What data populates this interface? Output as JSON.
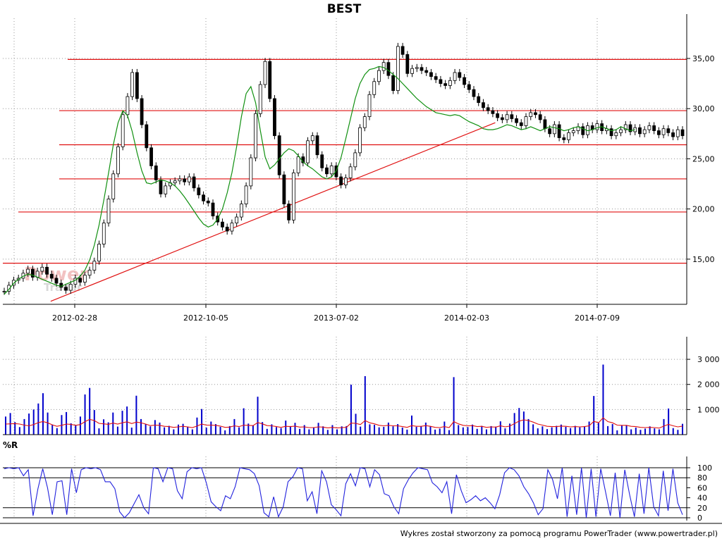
{
  "chart_data": [
    {
      "type": "candlestick",
      "title": "BEST",
      "x_ticks": [
        "2012-02-28",
        "2012-10-05",
        "2013-07-02",
        "2014-02-03",
        "2014-07-09"
      ],
      "y_ticks": [
        "15,00",
        "20,00",
        "25,00",
        "30,00",
        "35,00"
      ],
      "ylim": [
        10.5,
        39
      ],
      "grid": true,
      "series": [
        {
          "name": "",
          "close": [
            11.8,
            12.4,
            12.9,
            13.1,
            13.6,
            14.0,
            13.2,
            13.8,
            14.2,
            13.5,
            13.1,
            12.6,
            12.2,
            11.9,
            12.5,
            13.1,
            12.7,
            13.4,
            13.9,
            14.8,
            16.5,
            18.6,
            21.0,
            23.5,
            26.2,
            29.4,
            31.2,
            33.6,
            31.0,
            28.4,
            26.1,
            24.3,
            22.9,
            21.5,
            22.3,
            22.6,
            22.8,
            23.0,
            22.7,
            23.2,
            22.1,
            21.4,
            20.8,
            20.6,
            19.3,
            18.7,
            18.2,
            17.8,
            18.6,
            19.2,
            20.5,
            22.3,
            25.1,
            29.5,
            32.4,
            34.7,
            31.0,
            27.3,
            23.4,
            20.5,
            18.9,
            23.6,
            25.2,
            24.6,
            26.8,
            27.3,
            25.4,
            24.1,
            23.5,
            24.3,
            23.2,
            22.4,
            23.1,
            24.2,
            25.6,
            28.1,
            29.2,
            31.4,
            32.7,
            33.8,
            34.6,
            33.3,
            31.8,
            36.2,
            35.4,
            33.5,
            34.0,
            34.1,
            33.8,
            33.6,
            33.2,
            32.9,
            32.5,
            32.3,
            32.8,
            33.6,
            33.1,
            32.4,
            31.9,
            31.2,
            30.6,
            30.1,
            29.8,
            29.5,
            29.1,
            28.9,
            29.4,
            29.0,
            28.6,
            28.3,
            29.2,
            29.6,
            29.4,
            28.9,
            28.0,
            27.5,
            28.4,
            27.1,
            26.9,
            27.6,
            27.8,
            28.2,
            27.4,
            28.3,
            27.9,
            28.5,
            27.8,
            28.0,
            27.3,
            27.6,
            27.9,
            28.4,
            27.7,
            28.1,
            27.5,
            27.9,
            28.3,
            27.8,
            27.4,
            28.0,
            27.6,
            27.2,
            27.9,
            27.3
          ],
          "moving_average": [
            11.5,
            12.0,
            12.6,
            13.0,
            13.3,
            13.5,
            13.4,
            13.2,
            13.0,
            12.8,
            12.6,
            12.4,
            12.3,
            12.5,
            12.7,
            12.9,
            13.3,
            13.9,
            14.9,
            16.4,
            18.4,
            20.9,
            23.6,
            26.4,
            28.6,
            29.8,
            29.3,
            27.7,
            25.6,
            23.8,
            22.6,
            22.5,
            22.7,
            22.9,
            22.8,
            22.6,
            22.3,
            21.8,
            21.2,
            20.5,
            19.8,
            19.1,
            18.5,
            18.2,
            18.4,
            19.0,
            20.0,
            21.6,
            23.6,
            26.2,
            29.2,
            31.5,
            32.2,
            30.6,
            27.8,
            25.2,
            24.0,
            24.4,
            25.0,
            25.6,
            26.0,
            25.8,
            25.3,
            24.7,
            24.3,
            24.0,
            23.6,
            23.2,
            23.0,
            23.2,
            23.8,
            25.1,
            27.0,
            29.0,
            31.0,
            32.5,
            33.4,
            33.9,
            34.0,
            34.2,
            34.1,
            33.8,
            33.4,
            33.0,
            32.5,
            32.0,
            31.5,
            31.0,
            30.6,
            30.2,
            29.9,
            29.6,
            29.5,
            29.4,
            29.3,
            29.4,
            29.3,
            29.0,
            28.7,
            28.5,
            28.3,
            28.0,
            27.9,
            27.9,
            28.0,
            28.2,
            28.4,
            28.3,
            28.1,
            27.9,
            28.0,
            28.2,
            28.0,
            27.8,
            28.0,
            28.2,
            28.1,
            28.0,
            27.8,
            27.9,
            28.1,
            28.2,
            28.0,
            27.8,
            27.9,
            28.1,
            28.2,
            28.0,
            27.8,
            27.9,
            28.2,
            28.0,
            27.8,
            27.9
          ]
        }
      ],
      "support_lines": [
        34.9,
        29.8,
        26.4,
        23.0,
        19.7,
        14.6
      ],
      "trendline": {
        "from": [
          0.07,
          10.8
        ],
        "to": [
          0.72,
          28.6
        ]
      }
    },
    {
      "type": "bar",
      "y_ticks": [
        "1 000",
        "2 000",
        "3 000"
      ],
      "ylim": [
        0,
        3900
      ],
      "series": [
        {
          "name": "",
          "values": [
            720,
            860,
            500,
            300,
            620,
            840,
            1000,
            1240,
            1650,
            880,
            400,
            260,
            780,
            900,
            450,
            380,
            720,
            1600,
            1860,
            980,
            250,
            610,
            490,
            880,
            320,
            950,
            1120,
            280,
            1550,
            620,
            420,
            330,
            580,
            480,
            290,
            350,
            210,
            400,
            430,
            320,
            210,
            680,
            1020,
            280,
            520,
            420,
            310,
            170,
            340,
            620,
            290,
            1050,
            440,
            370,
            1510,
            500,
            230,
            410,
            300,
            260,
            560,
            340,
            470,
            230,
            380,
            210,
            290,
            470,
            330,
            190,
            380,
            210,
            330,
            340,
            1990,
            830,
            320,
            2330,
            410,
            390,
            290,
            310,
            480,
            330,
            420,
            280,
            200,
            760,
            310,
            330,
            480,
            330,
            200,
            240,
            520,
            180,
            2290,
            380,
            290,
            300,
            400,
            230,
            350,
            210,
            340,
            320,
            530,
            250,
            440,
            860,
            1060,
            920,
            620,
            410,
            250,
            330,
            220,
            290,
            350,
            400,
            310,
            260,
            350,
            290,
            330,
            520,
            1540,
            480,
            2790,
            340,
            420,
            170,
            360,
            380,
            210,
            280,
            190,
            240,
            330,
            250,
            210,
            620,
            1040,
            260,
            190,
            430
          ],
          "moving_average": [
            420,
            430,
            440,
            420,
            380,
            350,
            400,
            480,
            520,
            470,
            390,
            330,
            370,
            420,
            410,
            370,
            400,
            520,
            610,
            560,
            450,
            430,
            410,
            460,
            420,
            470,
            510,
            440,
            500,
            470,
            420,
            360,
            380,
            370,
            330,
            320,
            290,
            310,
            330,
            310,
            280,
            340,
            420,
            380,
            380,
            370,
            340,
            290,
            300,
            350,
            320,
            380,
            370,
            360,
            480,
            430,
            360,
            350,
            320,
            290,
            330,
            320,
            340,
            300,
            310,
            280,
            280,
            310,
            300,
            270,
            290,
            270,
            280,
            290,
            460,
            450,
            400,
            560,
            470,
            430,
            370,
            350,
            370,
            350,
            350,
            320,
            290,
            360,
            330,
            330,
            360,
            330,
            290,
            280,
            320,
            280,
            520,
            430,
            370,
            350,
            360,
            320,
            330,
            290,
            310,
            300,
            350,
            310,
            340,
            440,
            540,
            590,
            560,
            500,
            420,
            380,
            330,
            320,
            320,
            340,
            330,
            310,
            320,
            310,
            320,
            350,
            530,
            470,
            670,
            520,
            470,
            380,
            370,
            370,
            330,
            320,
            290,
            280,
            290,
            280,
            260,
            340,
            410,
            350,
            310,
            340
          ]
        }
      ],
      "support_lines": []
    },
    {
      "type": "line",
      "title": "%R",
      "y_ticks": [
        "0",
        "20",
        "40",
        "60",
        "80",
        "100"
      ],
      "ylim": [
        0,
        100
      ],
      "reference_lines": [
        0,
        20,
        80,
        100
      ],
      "series": [
        {
          "name": "",
          "values": [
            98,
            100,
            98,
            100,
            84,
            96,
            4,
            58,
            98,
            60,
            6,
            72,
            74,
            6,
            98,
            50,
            96,
            100,
            98,
            100,
            96,
            72,
            72,
            58,
            12,
            0,
            10,
            28,
            46,
            20,
            8,
            100,
            98,
            72,
            100,
            98,
            54,
            38,
            92,
            100,
            98,
            100,
            70,
            32,
            22,
            14,
            44,
            38,
            62,
            100,
            98,
            96,
            88,
            64,
            10,
            2,
            42,
            2,
            22,
            72,
            82,
            100,
            98,
            34,
            52,
            8,
            94,
            72,
            26,
            16,
            4,
            68,
            88,
            64,
            100,
            98,
            62,
            96,
            86,
            48,
            44,
            22,
            8,
            58,
            76,
            90,
            100,
            98,
            96,
            70,
            62,
            50,
            72,
            8,
            86,
            54,
            30,
            36,
            44,
            34,
            40,
            30,
            18,
            46,
            90,
            100,
            96,
            84,
            62,
            48,
            30,
            6,
            18,
            96,
            76,
            38,
            100,
            2,
            84,
            6,
            100,
            0,
            98,
            2,
            98,
            52,
            4,
            90,
            0,
            96,
            46,
            2,
            88,
            8,
            100,
            22,
            4,
            94,
            14,
            98,
            30,
            6
          ]
        }
      ],
      "support_lines": []
    }
  ],
  "watermark": {
    "line1": "Power",
    "line2": "Trader"
  },
  "footer": "Wykres został stworzony za pomocą programu PowerTrader (www.powertrader.pl)",
  "colors": {
    "price_line": "#109010",
    "support": "#e01010",
    "volume": "#0000cc",
    "volume_ma": "#e01010",
    "willr": "#2222dd",
    "grid": "#999999",
    "axis": "#000000"
  }
}
